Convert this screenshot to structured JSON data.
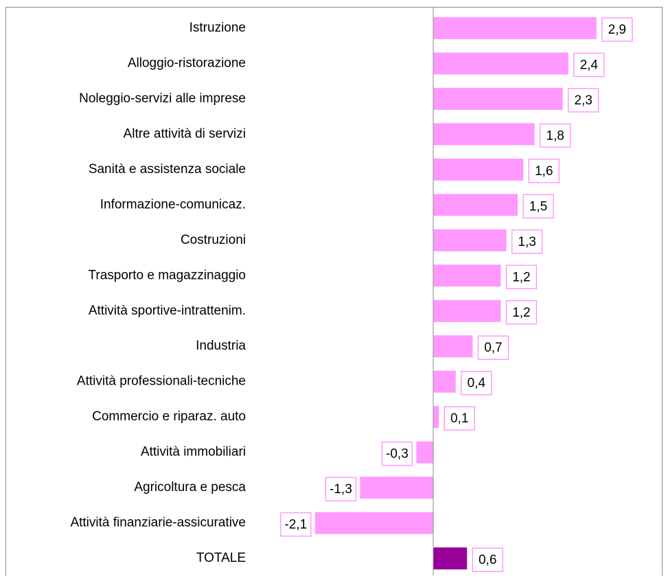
{
  "chart_data": {
    "type": "bar",
    "orientation": "horizontal",
    "categories": [
      "Istruzione",
      "Alloggio-ristorazione",
      "Noleggio-servizi alle imprese",
      "Altre attività di servizi",
      "Sanità e assistenza sociale",
      "Informazione-comunicaz.",
      "Costruzioni",
      "Trasporto e magazzinaggio",
      "Attività sportive-intrattenim.",
      "Industria",
      "Attività professionali-tecniche",
      "Commercio e riparaz. auto",
      "Attività immobiliari",
      "Agricoltura e pesca",
      "Attività finanziarie-assicurative",
      "TOTALE"
    ],
    "values": [
      2.9,
      2.4,
      2.3,
      1.8,
      1.6,
      1.5,
      1.3,
      1.2,
      1.2,
      0.7,
      0.4,
      0.1,
      -0.3,
      -1.3,
      -2.1,
      0.6
    ],
    "value_labels": [
      "2,9",
      "2,4",
      "2,3",
      "1,8",
      "1,6",
      "1,5",
      "1,3",
      "1,2",
      "1,2",
      "0,7",
      "0,4",
      "0,1",
      "-0,3",
      "-1,3",
      "-2,1",
      "0,6"
    ],
    "colors": [
      "#ff99ff",
      "#ff99ff",
      "#ff99ff",
      "#ff99ff",
      "#ff99ff",
      "#ff99ff",
      "#ff99ff",
      "#ff99ff",
      "#ff99ff",
      "#ff99ff",
      "#ff99ff",
      "#ff99ff",
      "#ff99ff",
      "#ff99ff",
      "#ff99ff",
      "#990099"
    ]
  }
}
